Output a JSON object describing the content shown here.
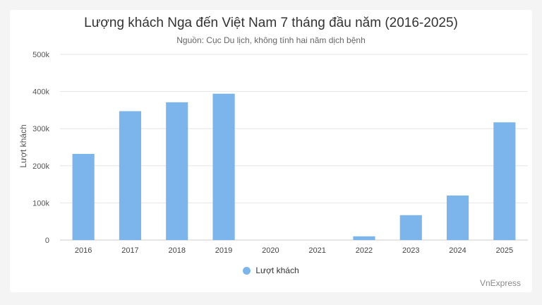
{
  "chart_data": {
    "type": "bar",
    "title": "Lượng khách Nga đến Việt Nam 7 tháng đầu năm (2016-2025)",
    "subtitle": "Nguồn: Cục Du lịch, không tính hai năm dịch bệnh",
    "categories": [
      "2016",
      "2017",
      "2018",
      "2019",
      "2020",
      "2021",
      "2022",
      "2023",
      "2024",
      "2025"
    ],
    "series": [
      {
        "name": "Lượt khách",
        "values": [
          232000,
          347000,
          371000,
          394000,
          0,
          0,
          10000,
          67000,
          120000,
          317000
        ],
        "color": "#7cb5ec"
      }
    ],
    "xlabel": "",
    "ylabel": "Lượt khách",
    "ylim": [
      0,
      500000
    ],
    "yticks": [
      0,
      100000,
      200000,
      300000,
      400000,
      500000
    ],
    "ytick_labels": [
      "0",
      "100k",
      "200k",
      "300k",
      "400k",
      "500k"
    ],
    "grid": true,
    "legend_position": "bottom"
  },
  "watermark": "VnExpress"
}
